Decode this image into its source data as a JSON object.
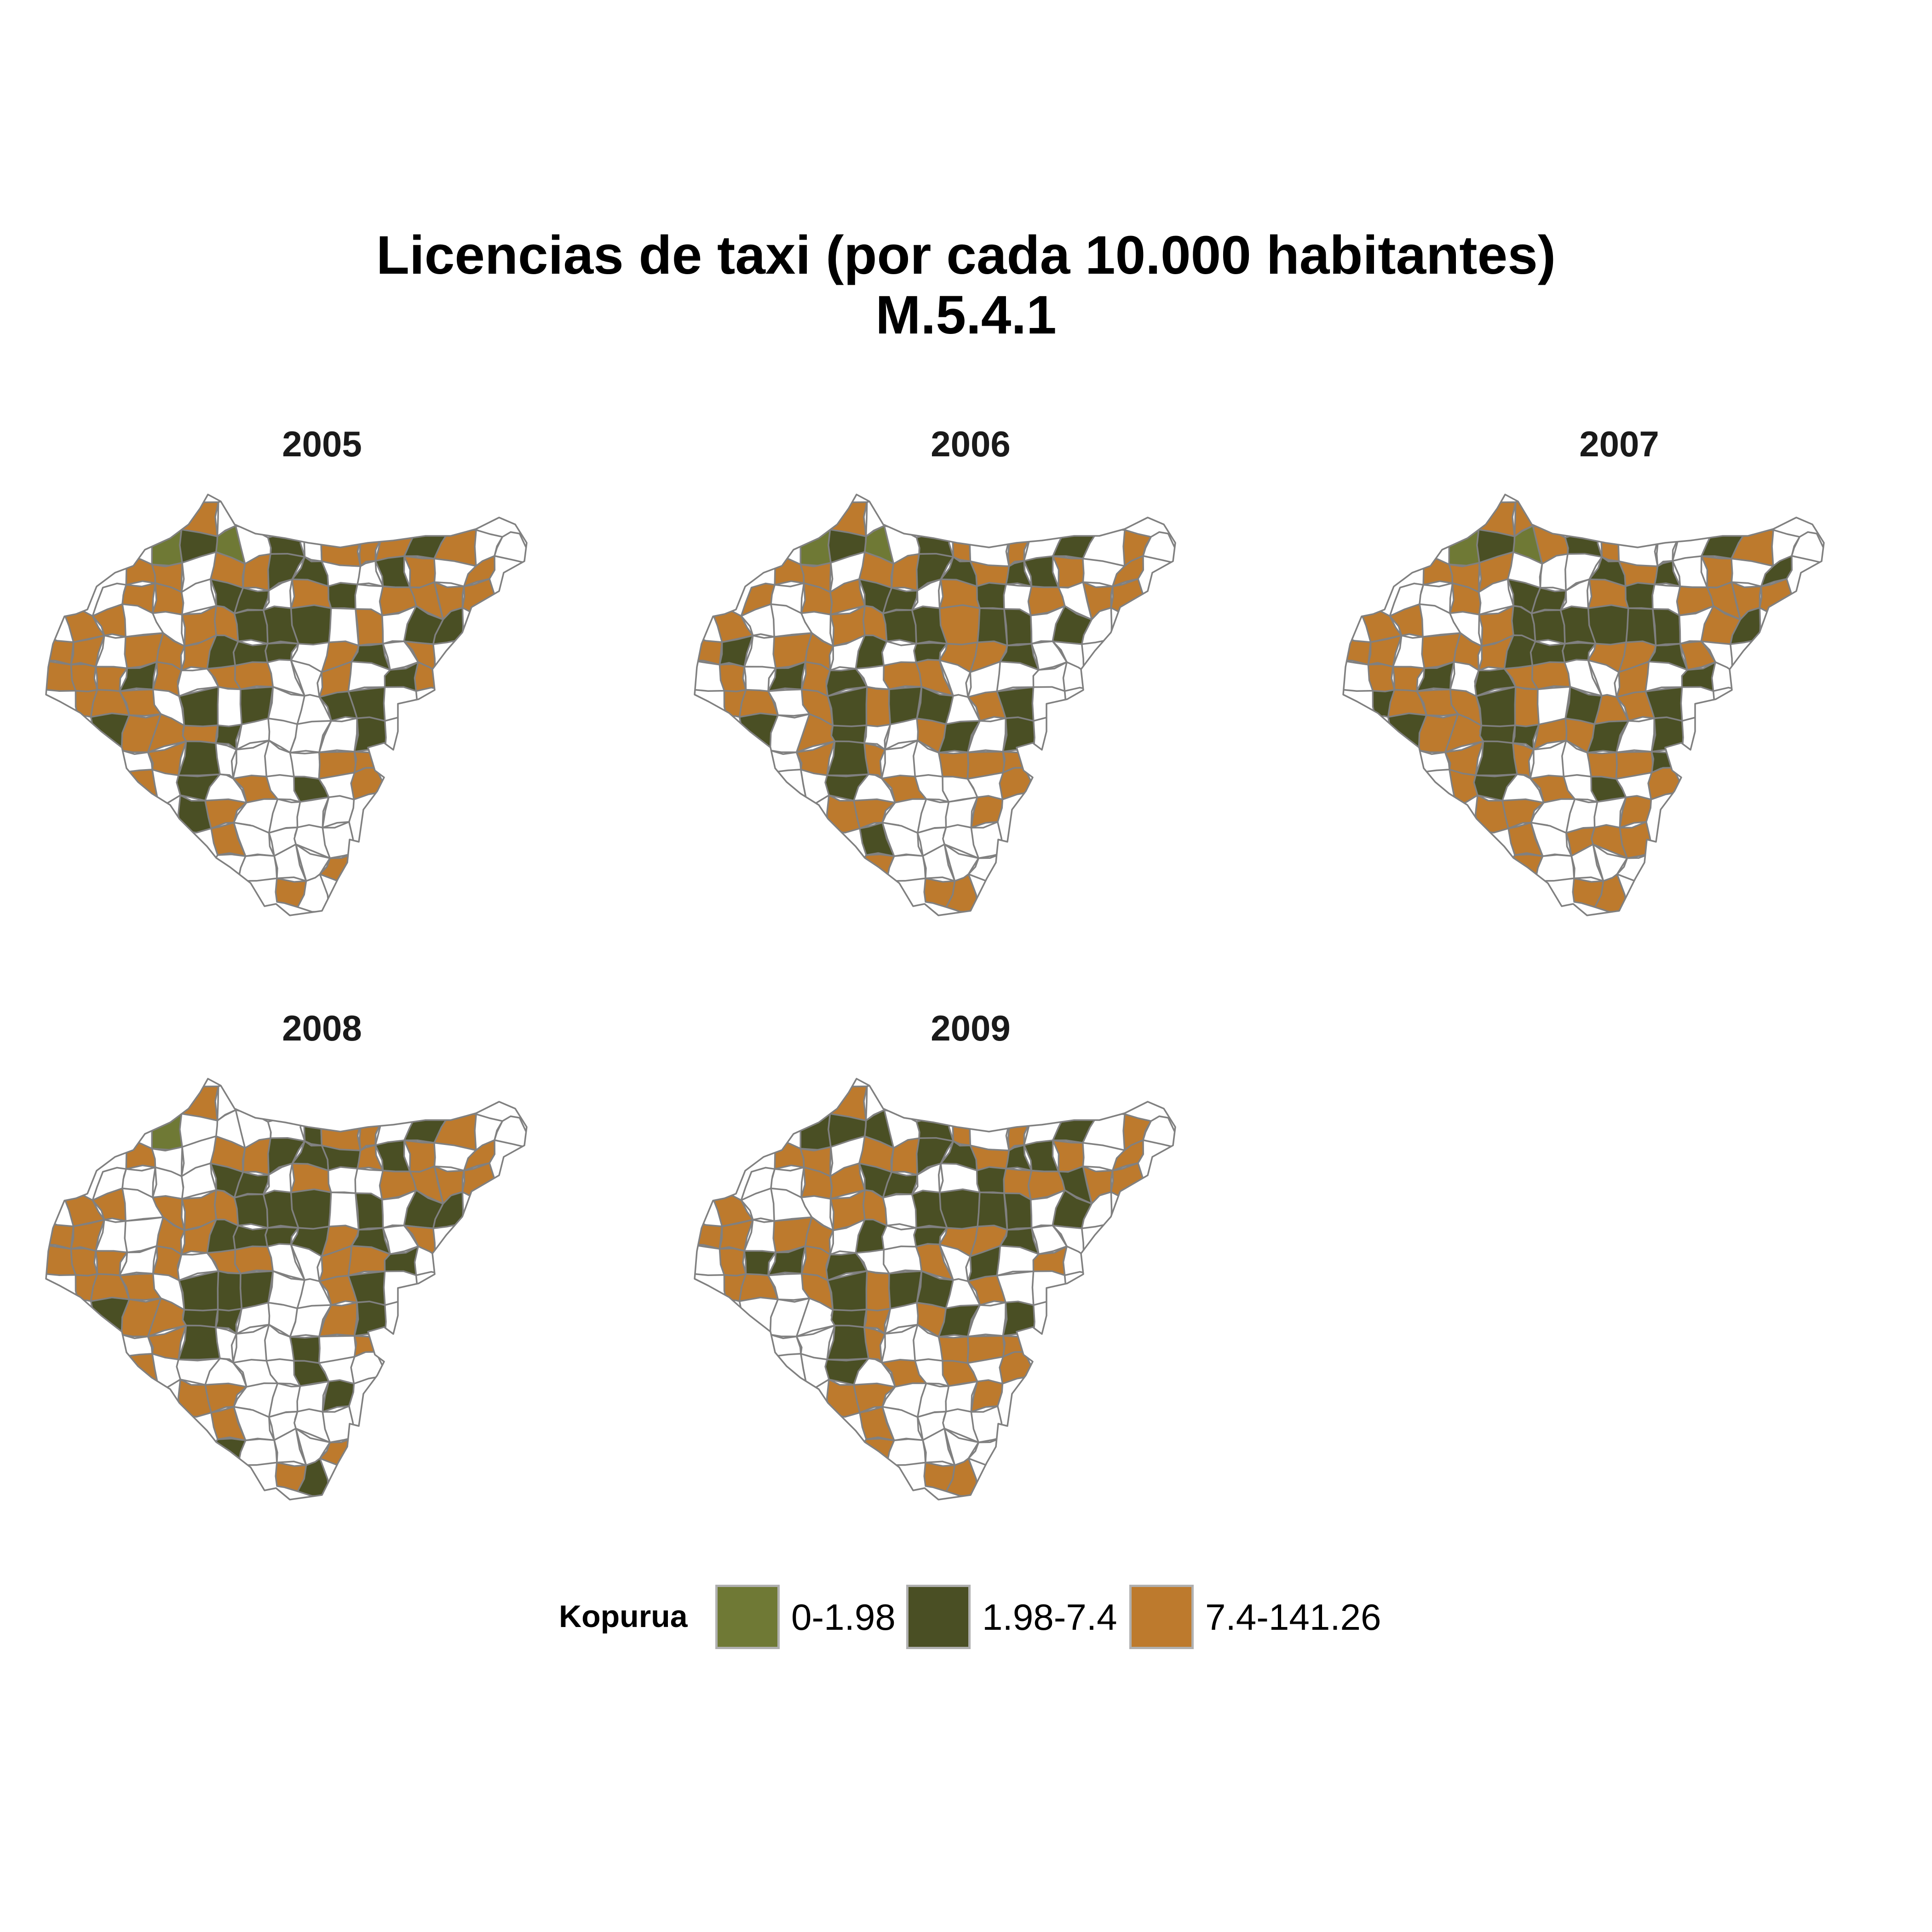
{
  "title": {
    "line1": "Licencias de taxi (por cada 10.000 habitantes)",
    "line2": "M.5.4.1"
  },
  "panels": [
    {
      "label": "2005"
    },
    {
      "label": "2006"
    },
    {
      "label": "2007"
    },
    {
      "label": "2008"
    },
    {
      "label": "2009"
    }
  ],
  "legend": {
    "title": "Kopurua",
    "items": [
      {
        "label": "0-1.98",
        "color": "#6f7935"
      },
      {
        "label": "1.98-7.4",
        "color": "#4a4f24"
      },
      {
        "label": "7.4-141.26",
        "color": "#bd7a2d"
      }
    ]
  },
  "colors": {
    "no_data": "#ffffff",
    "border": "#808080"
  }
}
